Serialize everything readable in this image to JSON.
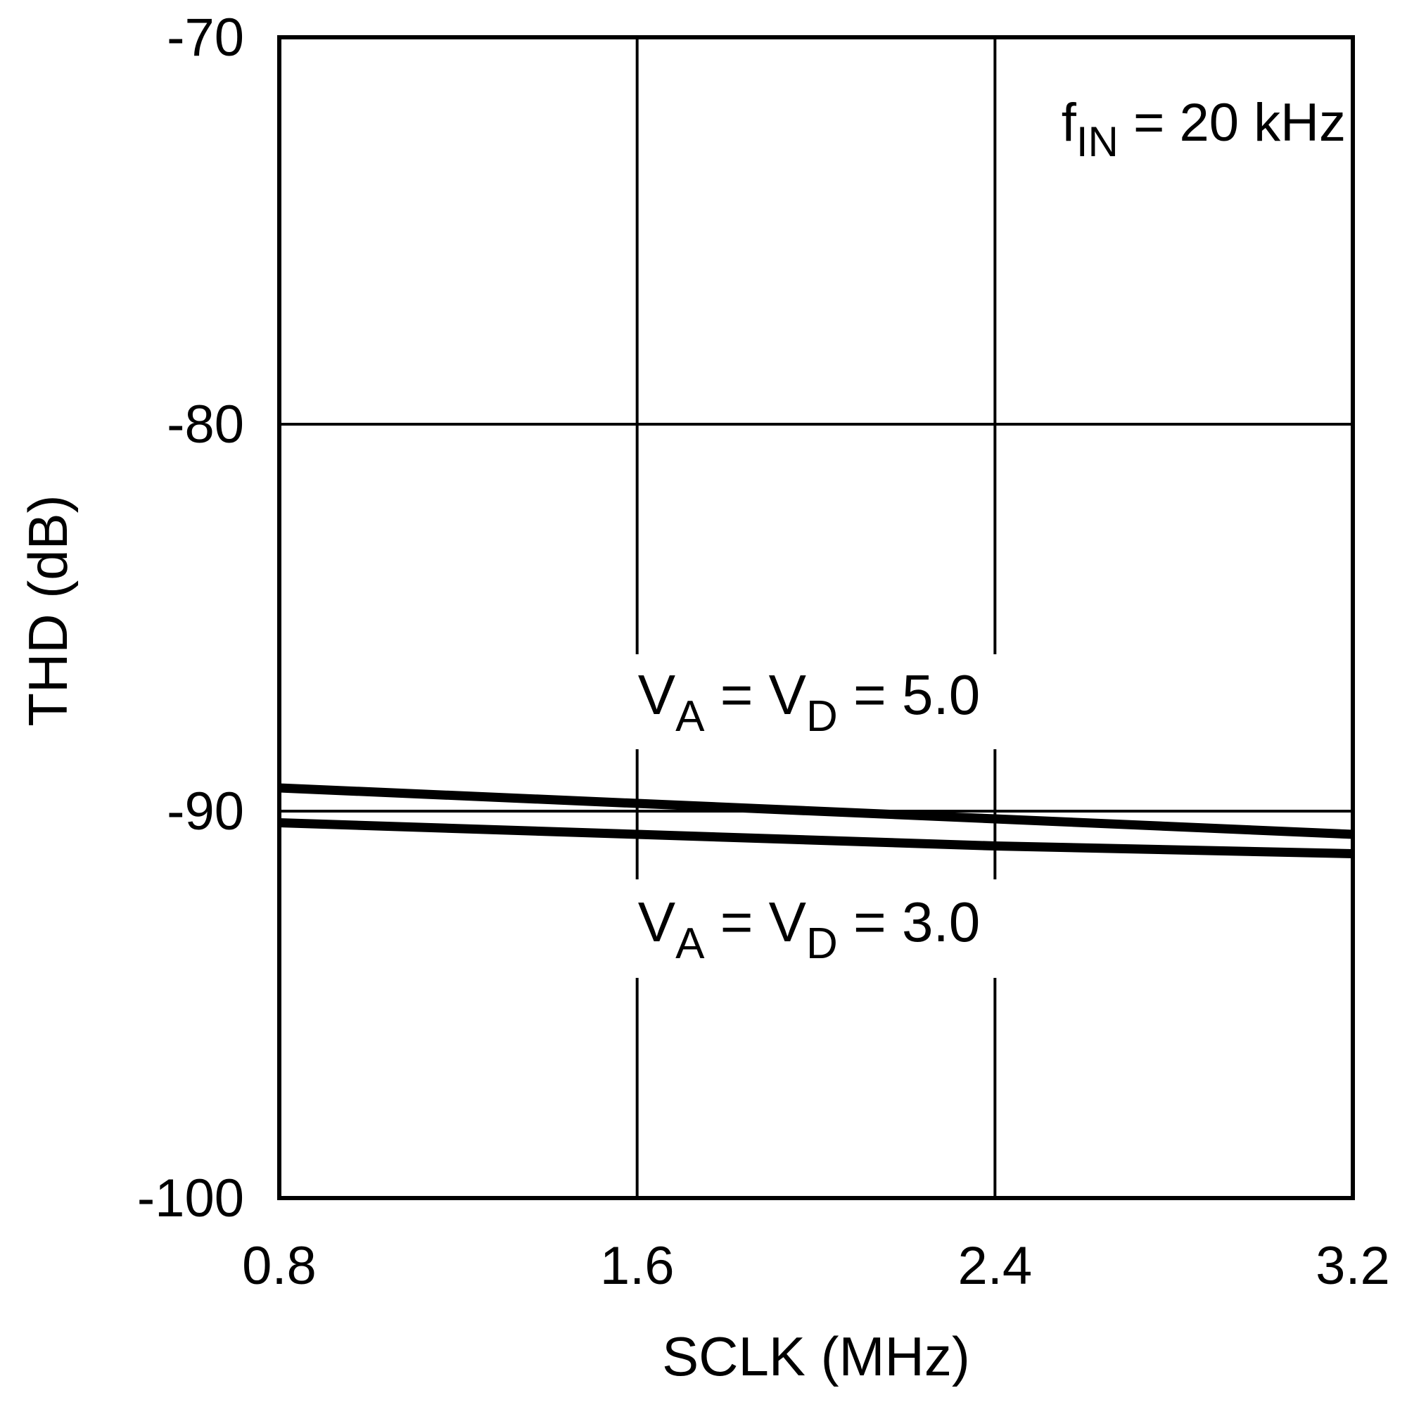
{
  "chart_data": {
    "type": "line",
    "xlabel": "SCLK (MHz)",
    "ylabel": "THD (dB)",
    "xlim": [
      0.8,
      3.2
    ],
    "ylim": [
      -100,
      -70
    ],
    "x_ticks": [
      "0.8",
      "1.6",
      "2.4",
      "3.2"
    ],
    "y_ticks": [
      "-70",
      "-80",
      "-90",
      "-100"
    ],
    "grid": true,
    "annotations": [
      {
        "name": "fin-annotation",
        "base": "f",
        "sub": "IN",
        "tail": " = 20 kHz"
      },
      {
        "name": "va5-annotation",
        "v1": "V",
        "s1": "A",
        "mid": " = V",
        "s2": "D",
        "tail": " = 5.0"
      },
      {
        "name": "va3-annotation",
        "v1": "V",
        "s1": "A",
        "mid": " = V",
        "s2": "D",
        "tail": " = 3.0"
      }
    ],
    "series": [
      {
        "x": [
          0.8,
          1.6,
          2.4,
          3.2
        ],
        "values": [
          -89.4,
          -89.8,
          -90.2,
          -90.6
        ]
      },
      {
        "x": [
          0.8,
          1.6,
          2.4,
          3.2
        ],
        "values": [
          -90.3,
          -90.6,
          -90.9,
          -91.1
        ]
      }
    ]
  }
}
